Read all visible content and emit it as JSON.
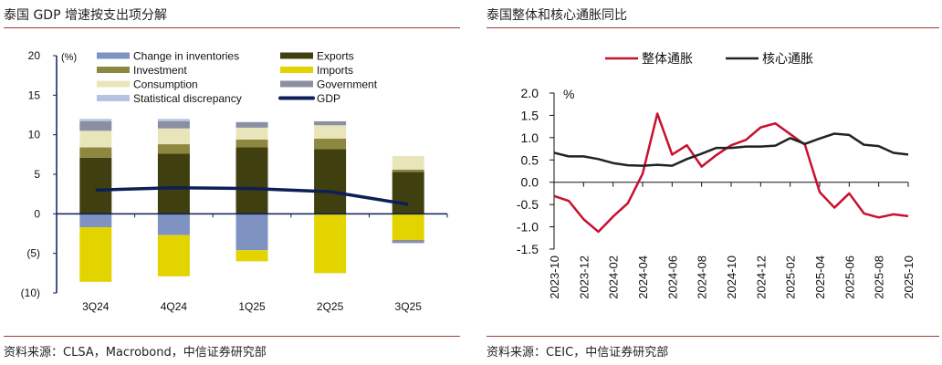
{
  "left": {
    "title": "泰国 GDP 增速按支出项分解",
    "source": "资料来源：CLSA，Macrobond，中信证券研究部"
  },
  "right": {
    "title": "泰国整体和核心通胀同比",
    "source": "资料来源：CEIC，中信证券研究部"
  },
  "chart_data": [
    {
      "type": "bar",
      "stacked": true,
      "ylabel": "(%)",
      "ylim": [
        -10,
        20
      ],
      "yticks": [
        "20",
        "15",
        "10",
        "5",
        "0",
        "(5)",
        "(10)"
      ],
      "ytick_values": [
        20,
        15,
        10,
        5,
        0,
        -5,
        -10
      ],
      "categories": [
        "3Q24",
        "4Q24",
        "1Q25",
        "2Q25",
        "3Q25"
      ],
      "legend_position": "top",
      "series": [
        {
          "name": "Change in inventories",
          "color": "#7f93c2",
          "values": [
            -1.7,
            -2.7,
            -4.6,
            0,
            0
          ]
        },
        {
          "name": "Exports",
          "color": "#403f10",
          "values": [
            7.1,
            7.6,
            8.4,
            8.2,
            5.3
          ]
        },
        {
          "name": "Investment",
          "color": "#8d8740",
          "values": [
            1.3,
            1.2,
            1.0,
            1.3,
            0.3
          ]
        },
        {
          "name": "Imports",
          "color": "#e3d400",
          "values": [
            -6.9,
            -5.2,
            -1.4,
            -7.5,
            -3.3
          ]
        },
        {
          "name": "Consumption",
          "color": "#e9e5bb",
          "values": [
            2.1,
            2.0,
            1.5,
            1.7,
            1.7
          ]
        },
        {
          "name": "Government",
          "color": "#8a8fa2",
          "values": [
            1.2,
            0.9,
            0.7,
            0.5,
            -0.4
          ]
        },
        {
          "name": "Statistical discrepancy",
          "color": "#b6c2e0",
          "values": [
            0.3,
            0.3,
            0,
            0,
            0
          ]
        },
        {
          "name": "GDP",
          "type": "line",
          "color": "#0c1f57",
          "values": [
            3.0,
            3.3,
            3.2,
            2.8,
            1.2
          ]
        }
      ]
    },
    {
      "type": "line",
      "ylabel": "%",
      "ylim": [
        -1.5,
        2.0
      ],
      "yticks": [
        "2.0",
        "1.5",
        "1.0",
        "0.5",
        "0.0",
        "-0.5",
        "-1.0",
        "-1.5"
      ],
      "ytick_values": [
        2.0,
        1.5,
        1.0,
        0.5,
        0.0,
        -0.5,
        -1.0,
        -1.5
      ],
      "x": [
        "2023-10",
        "2023-11",
        "2023-12",
        "2024-01",
        "2024-02",
        "2024-03",
        "2024-04",
        "2024-05",
        "2024-06",
        "2024-07",
        "2024-08",
        "2024-09",
        "2024-10",
        "2024-11",
        "2024-12",
        "2025-01",
        "2025-02",
        "2025-03",
        "2025-04",
        "2025-05",
        "2025-06",
        "2025-07",
        "2025-08",
        "2025-09",
        "2025-10"
      ],
      "xtick_labels": [
        "2023-10",
        "2023-12",
        "2024-02",
        "2024-04",
        "2024-06",
        "2024-08",
        "2024-10",
        "2024-12",
        "2025-02",
        "2025-04",
        "2025-06",
        "2025-08",
        "2025-10"
      ],
      "legend_position": "top",
      "series": [
        {
          "name": "整体通胀",
          "color": "#c8102e",
          "values": [
            -0.31,
            -0.42,
            -0.83,
            -1.11,
            -0.77,
            -0.47,
            0.19,
            1.54,
            0.62,
            0.83,
            0.35,
            0.61,
            0.83,
            0.95,
            1.23,
            1.32,
            1.08,
            0.84,
            -0.22,
            -0.57,
            -0.25,
            -0.7,
            -0.79,
            -0.72,
            -0.76
          ]
        },
        {
          "name": "核心通胀",
          "color": "#222222",
          "values": [
            0.66,
            0.58,
            0.58,
            0.52,
            0.43,
            0.38,
            0.37,
            0.39,
            0.37,
            0.52,
            0.64,
            0.77,
            0.77,
            0.8,
            0.8,
            0.82,
            0.99,
            0.86,
            0.98,
            1.09,
            1.06,
            0.84,
            0.81,
            0.66,
            0.62
          ]
        }
      ]
    }
  ]
}
